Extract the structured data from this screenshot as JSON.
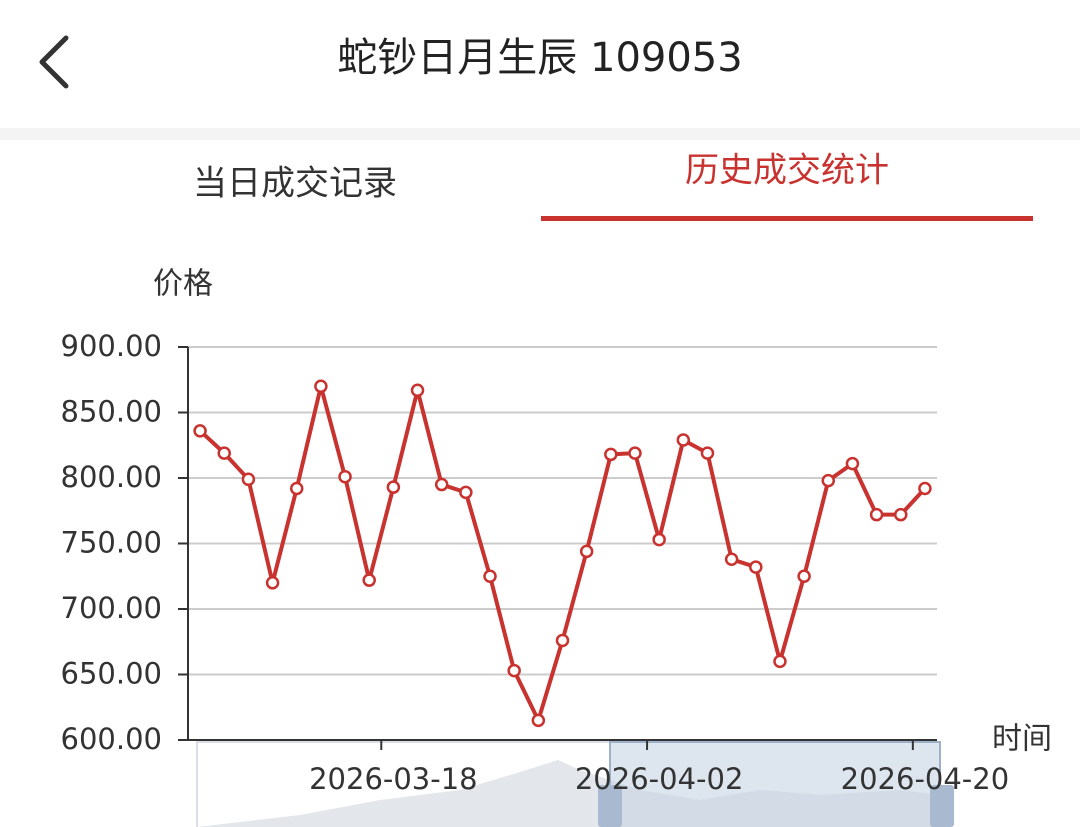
{
  "header": {
    "title": "蛇钞日月生辰 109053",
    "tabs": [
      "当日成交记录",
      "历史成交统计"
    ],
    "active_tab": 1
  },
  "chart_data": {
    "type": "line",
    "y_label": "价格",
    "x_label": "时间",
    "categories": [
      null,
      null,
      null,
      null,
      null,
      null,
      null,
      null,
      "2026-03-18",
      null,
      null,
      null,
      null,
      null,
      null,
      null,
      null,
      null,
      null,
      "2026-04-02",
      null,
      null,
      null,
      null,
      null,
      null,
      null,
      null,
      null,
      null,
      "2026-04-20"
    ],
    "values": [
      836,
      819,
      799,
      720,
      792,
      870,
      801,
      722,
      793,
      867,
      795,
      789,
      725,
      653,
      615,
      676,
      744,
      818,
      819,
      753,
      829,
      819,
      738,
      732,
      660,
      725,
      798,
      811,
      772,
      772,
      792
    ],
    "color": "#c8322f",
    "ylim": [
      600,
      900
    ],
    "yticks": [
      {
        "value": 600,
        "label": "600.00"
      },
      {
        "value": 650,
        "label": "650.00"
      },
      {
        "value": 700,
        "label": "700.00"
      },
      {
        "value": 750,
        "label": "750.00"
      },
      {
        "value": 800,
        "label": "800.00"
      },
      {
        "value": 850,
        "label": "850.00"
      },
      {
        "value": 900,
        "label": "900.00"
      }
    ],
    "grid": true
  }
}
